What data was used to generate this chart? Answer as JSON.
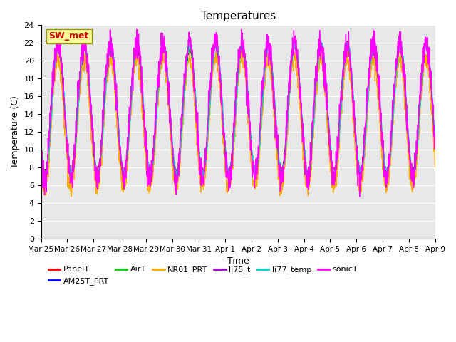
{
  "title": "Temperatures",
  "xlabel": "Time",
  "ylabel": "Temperature (C)",
  "ylim": [
    0,
    24
  ],
  "yticks": [
    0,
    2,
    4,
    6,
    8,
    10,
    12,
    14,
    16,
    18,
    20,
    22,
    24
  ],
  "x_tick_labels": [
    "Mar 25",
    "Mar 26",
    "Mar 27",
    "Mar 28",
    "Mar 29",
    "Mar 30",
    "Mar 31",
    "Apr 1",
    "Apr 2",
    "Apr 3",
    "Apr 4",
    "Apr 5",
    "Apr 6",
    "Apr 7",
    "Apr 8",
    "Apr 9"
  ],
  "station_label": "SW_met",
  "series": {
    "PanelT": {
      "color": "#ff0000",
      "lw": 1.0
    },
    "AM25T_PRT": {
      "color": "#0000ff",
      "lw": 1.0
    },
    "AirT": {
      "color": "#00cc00",
      "lw": 1.0
    },
    "NR01_PRT": {
      "color": "#ffaa00",
      "lw": 1.0
    },
    "li75_t": {
      "color": "#9900cc",
      "lw": 1.0
    },
    "li77_temp": {
      "color": "#00cccc",
      "lw": 1.0
    },
    "sonicT": {
      "color": "#ff00ff",
      "lw": 1.0
    }
  },
  "bg_color": "#e8e8e8",
  "fig_bg": "#ffffff",
  "n_points": 2016,
  "days": 15,
  "seed": 42
}
